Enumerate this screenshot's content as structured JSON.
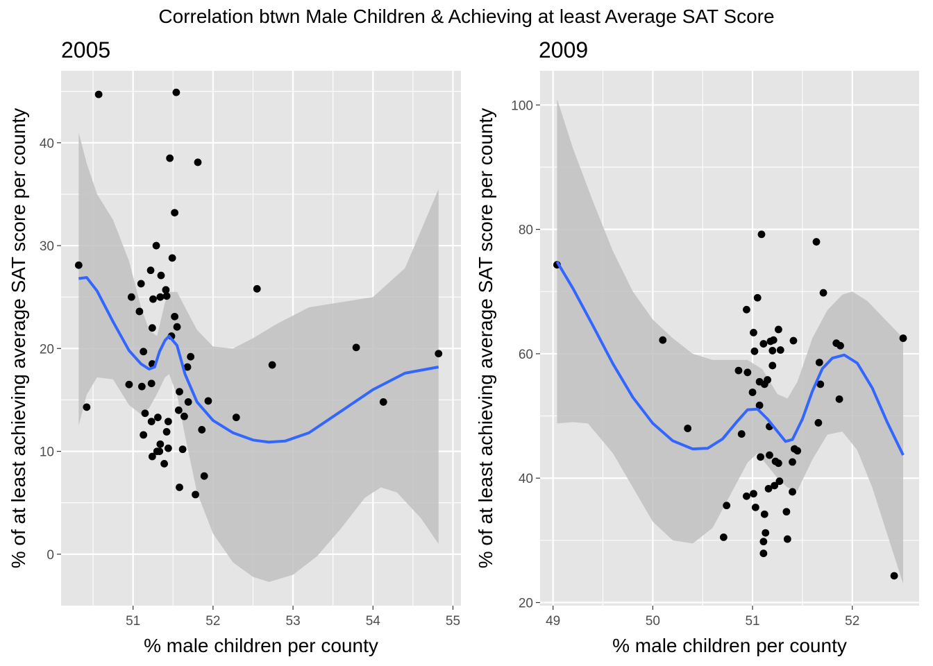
{
  "title": "Correlation btwn Male Children & Achieving at least Average SAT Score",
  "colors": {
    "panel_bg": "#e5e5e5",
    "grid": "#ffffff",
    "points": "#000000",
    "smooth_line": "#3366ff",
    "ribbon": "#bebebe"
  },
  "chart_data": [
    {
      "type": "scatter",
      "subtitle": "2005",
      "xlabel": "% male children per county",
      "ylabel": "% of at least achieving average SAT score per county",
      "xlim": [
        50.1,
        55.1
      ],
      "ylim": [
        -5,
        47
      ],
      "xticks": [
        51,
        52,
        53,
        54,
        55
      ],
      "yticks": [
        0,
        10,
        20,
        30,
        40
      ],
      "grid": true,
      "points": [
        [
          50.32,
          28.1
        ],
        [
          50.42,
          14.3
        ],
        [
          50.57,
          44.7
        ],
        [
          50.95,
          16.5
        ],
        [
          50.98,
          25.0
        ],
        [
          51.08,
          23.6
        ],
        [
          51.1,
          26.3
        ],
        [
          51.11,
          16.3
        ],
        [
          51.13,
          11.6
        ],
        [
          51.13,
          19.7
        ],
        [
          51.15,
          13.7
        ],
        [
          51.22,
          27.6
        ],
        [
          51.23,
          16.6
        ],
        [
          51.23,
          12.9
        ],
        [
          51.24,
          18.5
        ],
        [
          51.24,
          22.0
        ],
        [
          51.24,
          9.5
        ],
        [
          51.25,
          24.8
        ],
        [
          51.29,
          30.0
        ],
        [
          51.3,
          10.0
        ],
        [
          51.31,
          13.3
        ],
        [
          51.33,
          10.0
        ],
        [
          51.34,
          25.0
        ],
        [
          51.34,
          10.7
        ],
        [
          51.35,
          27.1
        ],
        [
          51.39,
          8.8
        ],
        [
          51.41,
          25.7
        ],
        [
          51.42,
          11.9
        ],
        [
          51.42,
          25.1
        ],
        [
          51.44,
          12.9
        ],
        [
          51.44,
          10.3
        ],
        [
          51.46,
          38.5
        ],
        [
          51.48,
          21.2
        ],
        [
          51.49,
          28.8
        ],
        [
          51.52,
          33.2
        ],
        [
          51.52,
          23.1
        ],
        [
          51.54,
          44.9
        ],
        [
          51.55,
          22.1
        ],
        [
          51.57,
          14.0
        ],
        [
          51.58,
          15.8
        ],
        [
          51.58,
          6.5
        ],
        [
          51.62,
          10.2
        ],
        [
          51.64,
          13.4
        ],
        [
          51.68,
          18.2
        ],
        [
          51.69,
          14.8
        ],
        [
          51.72,
          19.2
        ],
        [
          51.78,
          5.8
        ],
        [
          51.81,
          38.1
        ],
        [
          51.86,
          12.1
        ],
        [
          51.89,
          7.6
        ],
        [
          51.94,
          14.9
        ],
        [
          52.29,
          13.3
        ],
        [
          52.55,
          25.8
        ],
        [
          52.74,
          18.4
        ],
        [
          53.79,
          20.1
        ],
        [
          54.13,
          14.8
        ],
        [
          54.82,
          19.5
        ]
      ],
      "smooth": [
        [
          50.32,
          26.8
        ],
        [
          50.42,
          26.9
        ],
        [
          50.55,
          25.6
        ],
        [
          50.75,
          22.6
        ],
        [
          50.95,
          19.8
        ],
        [
          51.1,
          18.5
        ],
        [
          51.2,
          18.0
        ],
        [
          51.27,
          18.2
        ],
        [
          51.33,
          19.7
        ],
        [
          51.4,
          20.8
        ],
        [
          51.45,
          21.2
        ],
        [
          51.55,
          20.3
        ],
        [
          51.65,
          17.5
        ],
        [
          51.8,
          14.8
        ],
        [
          52.0,
          13.0
        ],
        [
          52.25,
          11.8
        ],
        [
          52.5,
          11.1
        ],
        [
          52.7,
          10.9
        ],
        [
          52.9,
          11.0
        ],
        [
          53.2,
          11.8
        ],
        [
          53.6,
          13.9
        ],
        [
          54.0,
          16.0
        ],
        [
          54.4,
          17.6
        ],
        [
          54.82,
          18.2
        ]
      ],
      "ribbon_upper": [
        [
          50.32,
          41.0
        ],
        [
          50.42,
          38.0
        ],
        [
          50.55,
          35.0
        ],
        [
          50.75,
          32.5
        ],
        [
          50.95,
          28.5
        ],
        [
          51.1,
          24.0
        ],
        [
          51.2,
          21.8
        ],
        [
          51.3,
          21.2
        ],
        [
          51.4,
          24.5
        ],
        [
          51.45,
          25.5
        ],
        [
          51.55,
          25.5
        ],
        [
          51.65,
          24.0
        ],
        [
          51.8,
          21.8
        ],
        [
          52.0,
          20.2
        ],
        [
          52.25,
          20.0
        ],
        [
          52.5,
          21.0
        ],
        [
          52.8,
          22.4
        ],
        [
          53.2,
          24.0
        ],
        [
          53.6,
          24.5
        ],
        [
          54.0,
          25.0
        ],
        [
          54.4,
          27.8
        ],
        [
          54.82,
          35.5
        ]
      ],
      "ribbon_lower": [
        [
          50.32,
          12.5
        ],
        [
          50.42,
          15.5
        ],
        [
          50.55,
          17.2
        ],
        [
          50.75,
          17.0
        ],
        [
          50.95,
          14.5
        ],
        [
          51.1,
          13.6
        ],
        [
          51.2,
          14.2
        ],
        [
          51.3,
          15.6
        ],
        [
          51.4,
          17.2
        ],
        [
          51.45,
          17.5
        ],
        [
          51.55,
          15.5
        ],
        [
          51.65,
          11.5
        ],
        [
          51.8,
          6.0
        ],
        [
          52.0,
          2.0
        ],
        [
          52.25,
          -0.8
        ],
        [
          52.5,
          -2.2
        ],
        [
          52.7,
          -2.7
        ],
        [
          53.0,
          -2.0
        ],
        [
          53.3,
          -0.2
        ],
        [
          53.6,
          2.5
        ],
        [
          53.9,
          5.5
        ],
        [
          54.1,
          6.5
        ],
        [
          54.3,
          6.0
        ],
        [
          54.6,
          3.5
        ],
        [
          54.82,
          1.0
        ]
      ]
    },
    {
      "type": "scatter",
      "subtitle": "2009",
      "xlabel": "% male children per county",
      "ylabel": "% of at least achieving average SAT score per county",
      "xlim": [
        48.87,
        52.67
      ],
      "ylim": [
        19.5,
        105.5
      ],
      "xticks": [
        49,
        50,
        51,
        52
      ],
      "yticks": [
        20,
        40,
        60,
        80,
        100
      ],
      "grid": true,
      "points": [
        [
          49.04,
          74.3
        ],
        [
          50.1,
          62.2
        ],
        [
          50.35,
          48.0
        ],
        [
          50.71,
          30.5
        ],
        [
          50.74,
          35.6
        ],
        [
          50.86,
          57.3
        ],
        [
          50.89,
          47.1
        ],
        [
          50.94,
          37.1
        ],
        [
          50.95,
          57.0
        ],
        [
          50.94,
          67.1
        ],
        [
          51.0,
          53.8
        ],
        [
          51.01,
          63.4
        ],
        [
          51.01,
          37.5
        ],
        [
          51.02,
          60.4
        ],
        [
          51.03,
          35.3
        ],
        [
          51.05,
          69.0
        ],
        [
          51.07,
          51.7
        ],
        [
          51.07,
          55.5
        ],
        [
          51.08,
          43.4
        ],
        [
          51.09,
          79.2
        ],
        [
          51.11,
          61.6
        ],
        [
          51.11,
          29.8
        ],
        [
          51.11,
          27.9
        ],
        [
          51.12,
          34.2
        ],
        [
          51.12,
          55.1
        ],
        [
          51.13,
          31.2
        ],
        [
          51.15,
          55.8
        ],
        [
          51.16,
          38.3
        ],
        [
          51.17,
          48.3
        ],
        [
          51.17,
          43.7
        ],
        [
          51.18,
          62.0
        ],
        [
          51.2,
          60.5
        ],
        [
          51.2,
          58.1
        ],
        [
          51.21,
          62.2
        ],
        [
          51.22,
          38.8
        ],
        [
          51.23,
          42.7
        ],
        [
          51.26,
          63.9
        ],
        [
          51.26,
          42.4
        ],
        [
          51.27,
          39.5
        ],
        [
          51.28,
          60.6
        ],
        [
          51.34,
          34.6
        ],
        [
          51.35,
          30.2
        ],
        [
          51.4,
          42.6
        ],
        [
          51.4,
          37.8
        ],
        [
          51.41,
          62.1
        ],
        [
          51.42,
          44.7
        ],
        [
          51.45,
          44.4
        ],
        [
          51.64,
          78.0
        ],
        [
          51.66,
          48.9
        ],
        [
          51.67,
          58.6
        ],
        [
          51.68,
          55.1
        ],
        [
          51.71,
          69.8
        ],
        [
          51.84,
          61.7
        ],
        [
          51.87,
          52.7
        ],
        [
          51.88,
          61.3
        ],
        [
          52.42,
          24.3
        ],
        [
          52.51,
          62.5
        ]
      ],
      "smooth": [
        [
          49.04,
          74.8
        ],
        [
          49.2,
          70.5
        ],
        [
          49.4,
          64.5
        ],
        [
          49.6,
          58.4
        ],
        [
          49.8,
          53.0
        ],
        [
          50.0,
          48.8
        ],
        [
          50.2,
          46.0
        ],
        [
          50.4,
          44.7
        ],
        [
          50.55,
          44.8
        ],
        [
          50.7,
          46.3
        ],
        [
          50.85,
          49.2
        ],
        [
          50.95,
          51.0
        ],
        [
          51.05,
          51.1
        ],
        [
          51.15,
          49.5
        ],
        [
          51.25,
          47.5
        ],
        [
          51.33,
          45.9
        ],
        [
          51.4,
          46.2
        ],
        [
          51.5,
          49.5
        ],
        [
          51.6,
          54.0
        ],
        [
          51.7,
          57.6
        ],
        [
          51.8,
          59.3
        ],
        [
          51.92,
          59.8
        ],
        [
          52.05,
          58.5
        ],
        [
          52.2,
          54.5
        ],
        [
          52.35,
          49.0
        ],
        [
          52.51,
          43.7
        ]
      ],
      "ribbon_upper": [
        [
          49.04,
          101.0
        ],
        [
          49.2,
          93.0
        ],
        [
          49.4,
          84.5
        ],
        [
          49.6,
          76.5
        ],
        [
          49.8,
          70.0
        ],
        [
          50.0,
          65.5
        ],
        [
          50.2,
          62.5
        ],
        [
          50.4,
          60.0
        ],
        [
          50.6,
          59.0
        ],
        [
          50.8,
          59.0
        ],
        [
          50.95,
          59.0
        ],
        [
          51.1,
          57.5
        ],
        [
          51.25,
          53.5
        ],
        [
          51.35,
          52.8
        ],
        [
          51.45,
          55.5
        ],
        [
          51.6,
          62.5
        ],
        [
          51.75,
          67.0
        ],
        [
          51.9,
          69.5
        ],
        [
          52.0,
          70.0
        ],
        [
          52.15,
          68.5
        ],
        [
          52.3,
          66.0
        ],
        [
          52.51,
          62.5
        ]
      ],
      "ribbon_lower": [
        [
          49.04,
          48.8
        ],
        [
          49.2,
          49.0
        ],
        [
          49.35,
          48.8
        ],
        [
          49.6,
          44.0
        ],
        [
          49.8,
          38.5
        ],
        [
          50.0,
          33.0
        ],
        [
          50.2,
          30.0
        ],
        [
          50.4,
          29.5
        ],
        [
          50.6,
          32.0
        ],
        [
          50.8,
          38.0
        ],
        [
          50.95,
          42.5
        ],
        [
          51.05,
          44.0
        ],
        [
          51.15,
          42.0
        ],
        [
          51.25,
          40.0
        ],
        [
          51.35,
          38.5
        ],
        [
          51.45,
          38.0
        ],
        [
          51.6,
          43.0
        ],
        [
          51.75,
          47.0
        ],
        [
          51.9,
          47.5
        ],
        [
          52.05,
          44.5
        ],
        [
          52.2,
          38.5
        ],
        [
          52.35,
          31.0
        ],
        [
          52.51,
          23.0
        ]
      ]
    }
  ]
}
